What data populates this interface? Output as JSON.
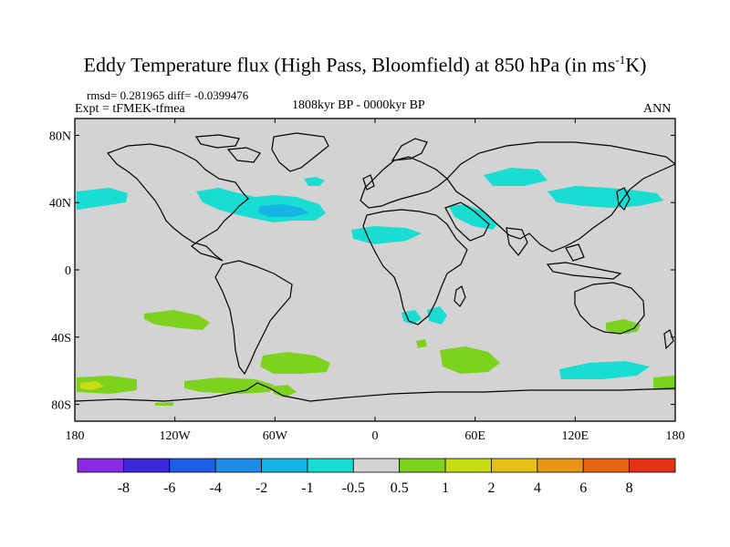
{
  "title": {
    "main": "Eddy Temperature flux (High Pass, Bloomfield) at 850 hPa (in ms",
    "sup": "-1",
    "unit_tail": "K)"
  },
  "stats": {
    "rmsd_diff": "rmsd= 0.281965  diff= -0.0399476",
    "expt": "Expt = tFMEK-tfmea",
    "period": "1808kyr BP - 0000kyr BP",
    "season": "ANN"
  },
  "map": {
    "lat_labels": [
      "80N",
      "40N",
      "0",
      "40S",
      "80S"
    ],
    "lat_values": [
      80,
      40,
      0,
      -40,
      -80
    ],
    "lon_labels": [
      "180",
      "120W",
      "60W",
      "0",
      "60E",
      "120E",
      "180"
    ],
    "lon_values": [
      -180,
      -120,
      -60,
      0,
      60,
      120,
      180
    ],
    "background_color": "#d3d3d3",
    "coast_color": "#000000"
  },
  "colorbar": {
    "colors": [
      "#8a2be2",
      "#3c28d8",
      "#1e5fe6",
      "#1e8ce6",
      "#14b4e6",
      "#19dcd2",
      "#d3d3d3",
      "#7dd21e",
      "#c8dc14",
      "#e6c014",
      "#e69614",
      "#e66414",
      "#e63214"
    ],
    "labels": [
      "-8",
      "-6",
      "-4",
      "-2",
      "-1",
      "-0.5",
      "0.5",
      "1",
      "2",
      "4",
      "6",
      "8"
    ]
  }
}
